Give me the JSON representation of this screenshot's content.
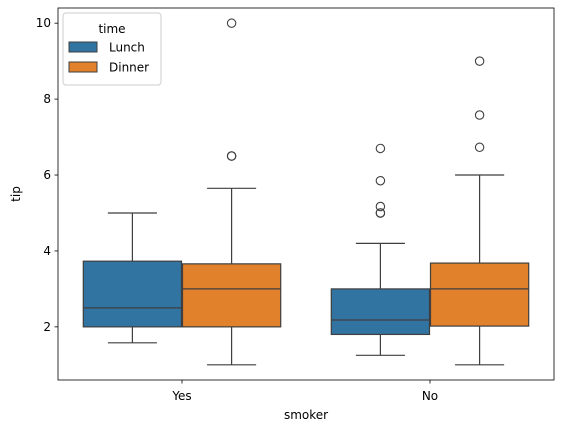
{
  "chart_data": {
    "type": "box",
    "xlabel": "smoker",
    "ylabel": "tip",
    "ylim": [
      0.6,
      10.4
    ],
    "yticks": [
      2,
      4,
      6,
      8,
      10
    ],
    "categories": [
      "Yes",
      "No"
    ],
    "legend": {
      "title": "time",
      "placement": "top-left"
    },
    "series": [
      {
        "name": "Lunch",
        "color": "#3274a1",
        "boxes": [
          {
            "category": "Yes",
            "whisker_low": 1.58,
            "q1": 2.0,
            "median": 2.5,
            "q3": 3.73,
            "whisker_high": 5.0,
            "outliers": []
          },
          {
            "category": "No",
            "whisker_low": 1.25,
            "q1": 1.8,
            "median": 2.18,
            "q3": 3.0,
            "whisker_high": 4.2,
            "outliers": [
              5.0,
              5.0,
              5.17,
              5.85,
              6.7
            ]
          }
        ]
      },
      {
        "name": "Dinner",
        "color": "#e1812c",
        "boxes": [
          {
            "category": "Yes",
            "whisker_low": 1.0,
            "q1": 2.0,
            "median": 3.0,
            "q3": 3.66,
            "whisker_high": 5.65,
            "outliers": [
              6.5,
              6.5,
              10.0
            ]
          },
          {
            "category": "No",
            "whisker_low": 1.0,
            "q1": 2.02,
            "median": 3.0,
            "q3": 3.68,
            "whisker_high": 6.0,
            "outliers": [
              6.73,
              7.58,
              9.0
            ]
          }
        ]
      }
    ]
  }
}
